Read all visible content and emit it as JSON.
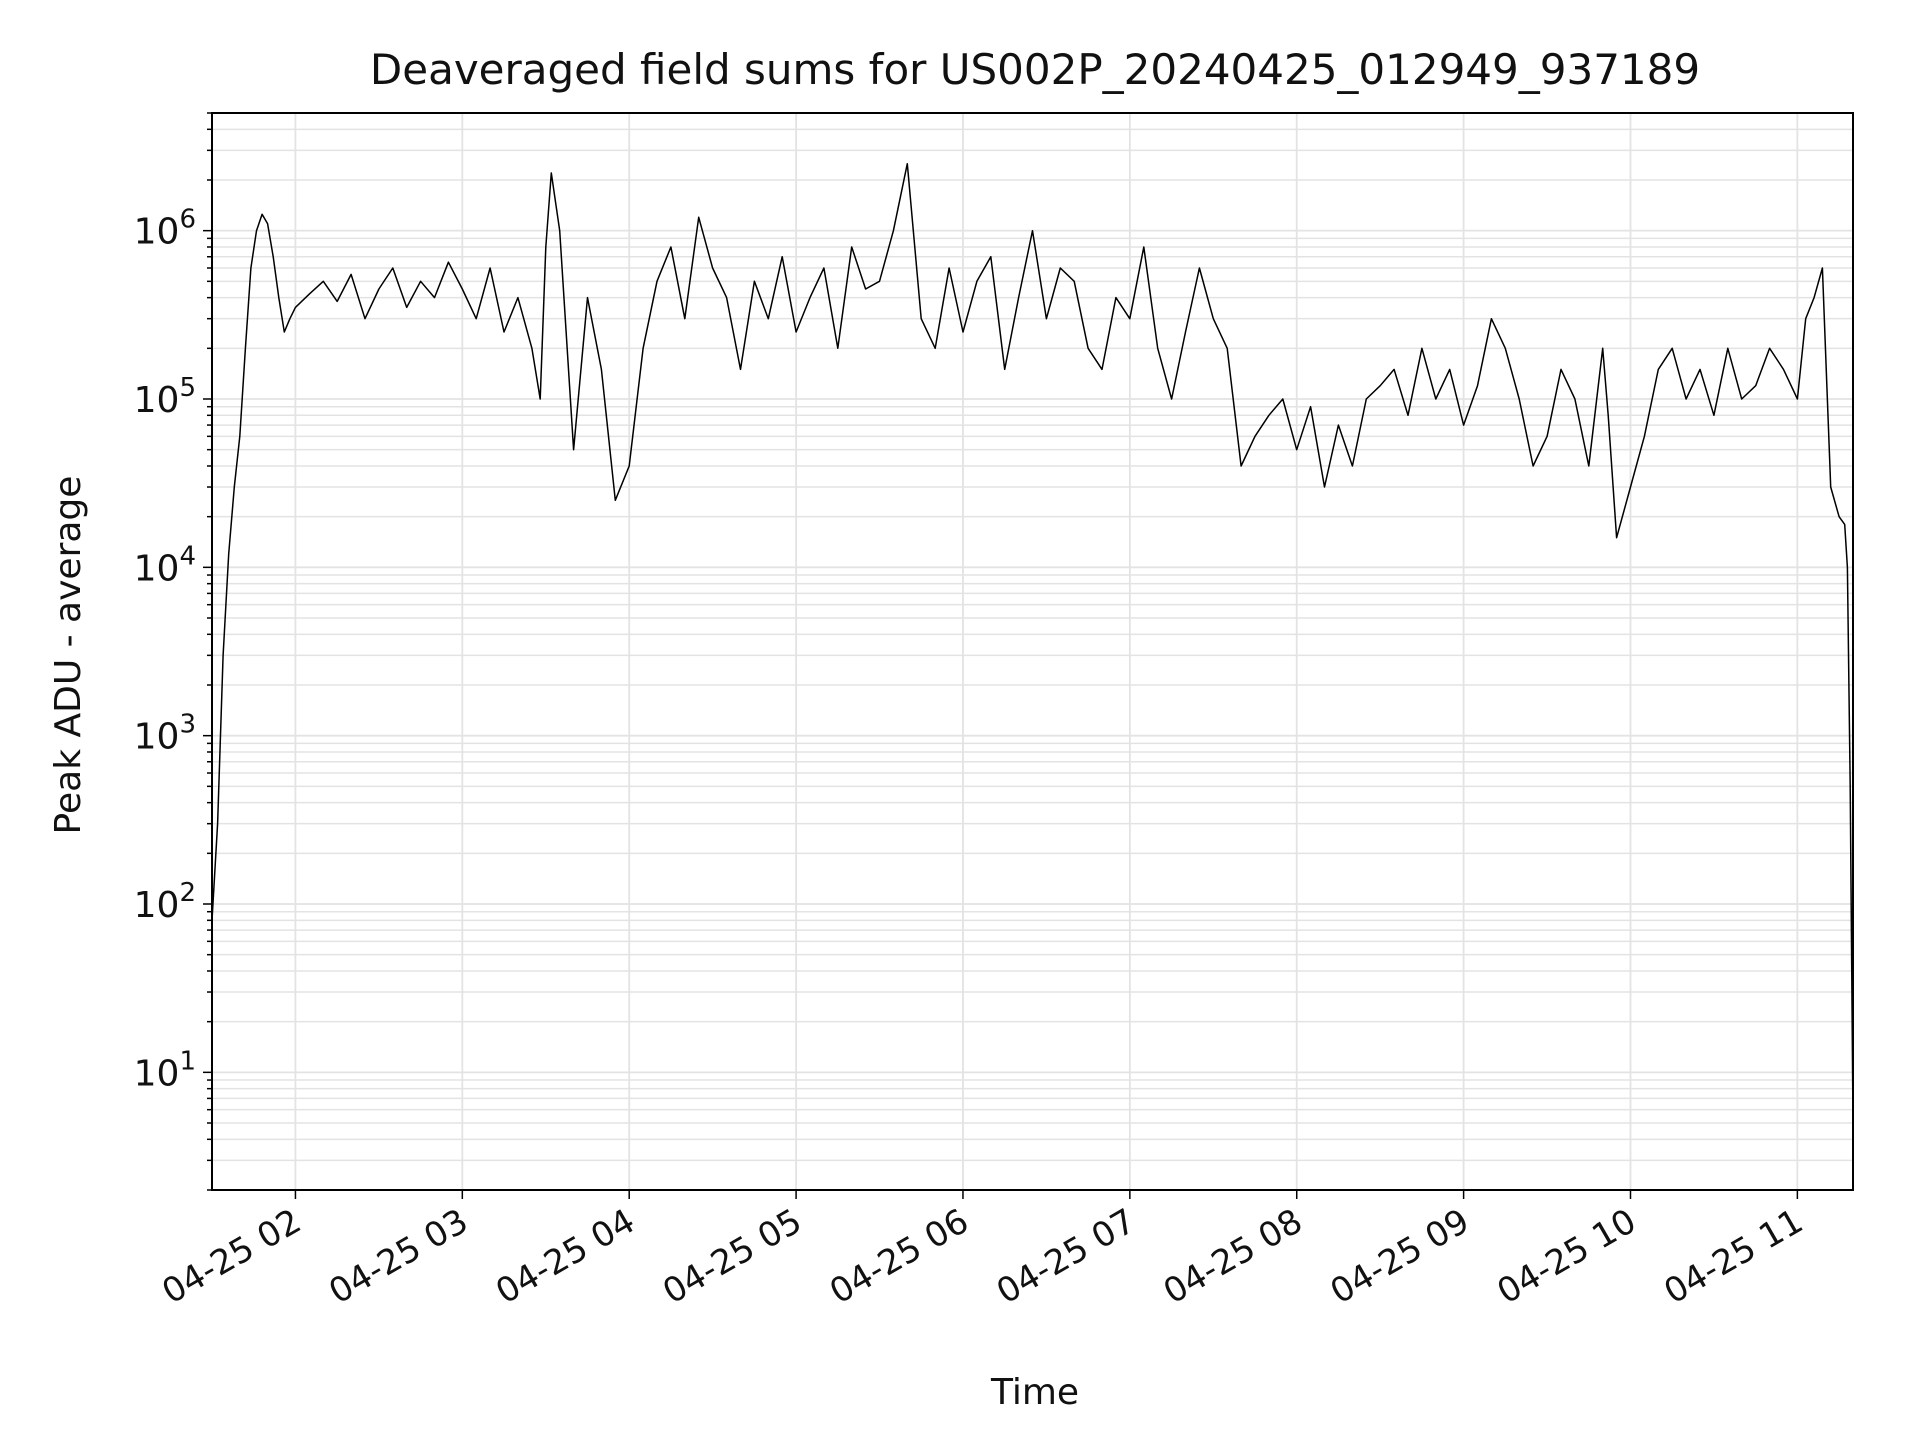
{
  "chart_data": {
    "type": "line",
    "title": "Deaveraged field sums for US002P_20240425_012949_937189",
    "xlabel": "Time",
    "ylabel": "Peak ADU - average",
    "yscale": "log",
    "ylim": [
      2,
      5000000
    ],
    "xlim": [
      "2024-04-25 01:30",
      "2024-04-25 11:20"
    ],
    "grid": true,
    "x_ticks": [
      {
        "value": "2024-04-25 02:00",
        "label": "04-25 02"
      },
      {
        "value": "2024-04-25 03:00",
        "label": "04-25 03"
      },
      {
        "value": "2024-04-25 04:00",
        "label": "04-25 04"
      },
      {
        "value": "2024-04-25 05:00",
        "label": "04-25 05"
      },
      {
        "value": "2024-04-25 06:00",
        "label": "04-25 06"
      },
      {
        "value": "2024-04-25 07:00",
        "label": "04-25 07"
      },
      {
        "value": "2024-04-25 08:00",
        "label": "04-25 08"
      },
      {
        "value": "2024-04-25 09:00",
        "label": "04-25 09"
      },
      {
        "value": "2024-04-25 10:00",
        "label": "04-25 10"
      },
      {
        "value": "2024-04-25 11:00",
        "label": "04-25 11"
      }
    ],
    "y_ticks": [
      {
        "value": 10,
        "base": "10",
        "exp": "1"
      },
      {
        "value": 100,
        "base": "10",
        "exp": "2"
      },
      {
        "value": 1000,
        "base": "10",
        "exp": "3"
      },
      {
        "value": 10000,
        "base": "10",
        "exp": "4"
      },
      {
        "value": 100000,
        "base": "10",
        "exp": "5"
      },
      {
        "value": 1000000,
        "base": "10",
        "exp": "6"
      }
    ],
    "line_color": "#000000",
    "grid_color": "#e3e3e3",
    "series": [
      {
        "x": [
          "2024-04-25 01:30",
          "2024-04-25 01:32",
          "2024-04-25 01:34",
          "2024-04-25 01:36",
          "2024-04-25 01:38",
          "2024-04-25 01:40",
          "2024-04-25 01:42",
          "2024-04-25 01:44",
          "2024-04-25 01:46",
          "2024-04-25 01:48",
          "2024-04-25 01:50",
          "2024-04-25 01:52",
          "2024-04-25 01:54",
          "2024-04-25 01:56",
          "2024-04-25 01:58",
          "2024-04-25 02:00",
          "2024-04-25 02:05",
          "2024-04-25 02:10",
          "2024-04-25 02:15",
          "2024-04-25 02:20",
          "2024-04-25 02:25",
          "2024-04-25 02:30",
          "2024-04-25 02:35",
          "2024-04-25 02:40",
          "2024-04-25 02:45",
          "2024-04-25 02:50",
          "2024-04-25 02:55",
          "2024-04-25 03:00",
          "2024-04-25 03:05",
          "2024-04-25 03:10",
          "2024-04-25 03:15",
          "2024-04-25 03:20",
          "2024-04-25 03:25",
          "2024-04-25 03:28",
          "2024-04-25 03:30",
          "2024-04-25 03:32",
          "2024-04-25 03:35",
          "2024-04-25 03:40",
          "2024-04-25 03:45",
          "2024-04-25 03:50",
          "2024-04-25 03:55",
          "2024-04-25 04:00",
          "2024-04-25 04:05",
          "2024-04-25 04:10",
          "2024-04-25 04:15",
          "2024-04-25 04:20",
          "2024-04-25 04:25",
          "2024-04-25 04:30",
          "2024-04-25 04:35",
          "2024-04-25 04:40",
          "2024-04-25 04:45",
          "2024-04-25 04:50",
          "2024-04-25 04:55",
          "2024-04-25 05:00",
          "2024-04-25 05:05",
          "2024-04-25 05:10",
          "2024-04-25 05:15",
          "2024-04-25 05:20",
          "2024-04-25 05:25",
          "2024-04-25 05:30",
          "2024-04-25 05:35",
          "2024-04-25 05:40",
          "2024-04-25 05:45",
          "2024-04-25 05:50",
          "2024-04-25 05:55",
          "2024-04-25 06:00",
          "2024-04-25 06:05",
          "2024-04-25 06:10",
          "2024-04-25 06:15",
          "2024-04-25 06:20",
          "2024-04-25 06:25",
          "2024-04-25 06:30",
          "2024-04-25 06:35",
          "2024-04-25 06:40",
          "2024-04-25 06:45",
          "2024-04-25 06:50",
          "2024-04-25 06:55",
          "2024-04-25 07:00",
          "2024-04-25 07:05",
          "2024-04-25 07:10",
          "2024-04-25 07:15",
          "2024-04-25 07:20",
          "2024-04-25 07:25",
          "2024-04-25 07:30",
          "2024-04-25 07:35",
          "2024-04-25 07:40",
          "2024-04-25 07:45",
          "2024-04-25 07:50",
          "2024-04-25 07:55",
          "2024-04-25 08:00",
          "2024-04-25 08:05",
          "2024-04-25 08:10",
          "2024-04-25 08:15",
          "2024-04-25 08:20",
          "2024-04-25 08:25",
          "2024-04-25 08:30",
          "2024-04-25 08:35",
          "2024-04-25 08:40",
          "2024-04-25 08:45",
          "2024-04-25 08:50",
          "2024-04-25 08:55",
          "2024-04-25 09:00",
          "2024-04-25 09:05",
          "2024-04-25 09:10",
          "2024-04-25 09:15",
          "2024-04-25 09:20",
          "2024-04-25 09:25",
          "2024-04-25 09:30",
          "2024-04-25 09:35",
          "2024-04-25 09:40",
          "2024-04-25 09:45",
          "2024-04-25 09:50",
          "2024-04-25 09:52",
          "2024-04-25 09:55",
          "2024-04-25 10:00",
          "2024-04-25 10:05",
          "2024-04-25 10:10",
          "2024-04-25 10:15",
          "2024-04-25 10:20",
          "2024-04-25 10:25",
          "2024-04-25 10:30",
          "2024-04-25 10:35",
          "2024-04-25 10:40",
          "2024-04-25 10:45",
          "2024-04-25 10:50",
          "2024-04-25 10:55",
          "2024-04-25 11:00",
          "2024-04-25 11:03",
          "2024-04-25 11:06",
          "2024-04-25 11:09",
          "2024-04-25 11:12",
          "2024-04-25 11:15",
          "2024-04-25 11:17",
          "2024-04-25 11:18",
          "2024-04-25 11:19",
          "2024-04-25 11:20"
        ],
        "y": [
          80,
          300,
          3000,
          12000,
          30000,
          60000,
          200000,
          600000,
          1000000,
          1250000,
          1100000,
          700000,
          400000,
          250000,
          300000,
          350000,
          420000,
          500000,
          380000,
          550000,
          300000,
          450000,
          600000,
          350000,
          500000,
          400000,
          650000,
          450000,
          300000,
          600000,
          250000,
          400000,
          200000,
          100000,
          800000,
          2200000,
          1000000,
          50000,
          400000,
          150000,
          25000,
          40000,
          200000,
          500000,
          800000,
          300000,
          1200000,
          600000,
          400000,
          150000,
          500000,
          300000,
          700000,
          250000,
          400000,
          600000,
          200000,
          800000,
          450000,
          500000,
          1000000,
          2500000,
          300000,
          200000,
          600000,
          250000,
          500000,
          700000,
          150000,
          400000,
          1000000,
          300000,
          600000,
          500000,
          200000,
          150000,
          400000,
          300000,
          800000,
          200000,
          100000,
          250000,
          600000,
          300000,
          200000,
          40000,
          60000,
          80000,
          100000,
          50000,
          90000,
          30000,
          70000,
          40000,
          100000,
          120000,
          150000,
          80000,
          200000,
          100000,
          150000,
          70000,
          120000,
          300000,
          200000,
          100000,
          40000,
          60000,
          150000,
          100000,
          40000,
          200000,
          80000,
          15000,
          30000,
          60000,
          150000,
          200000,
          100000,
          150000,
          80000,
          200000,
          100000,
          120000,
          200000,
          150000,
          100000,
          300000,
          400000,
          600000,
          30000,
          20000,
          18000,
          10000,
          500,
          5
        ]
      }
    ]
  }
}
